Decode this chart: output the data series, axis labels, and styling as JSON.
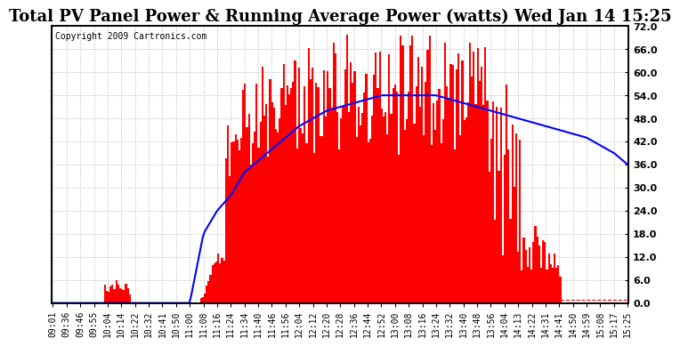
{
  "title": "Total PV Panel Power & Running Average Power (watts) Wed Jan 14 15:25",
  "copyright": "Copyright 2009 Cartronics.com",
  "ylabel_right_ticks": [
    0.0,
    6.0,
    12.0,
    18.0,
    24.0,
    30.0,
    36.0,
    42.0,
    48.0,
    54.0,
    60.0,
    66.0,
    72.0
  ],
  "ymin": 0.0,
  "ymax": 72.0,
  "x_tick_labels": [
    "09:01",
    "09:36",
    "09:46",
    "09:55",
    "10:04",
    "10:14",
    "10:22",
    "10:32",
    "10:41",
    "10:50",
    "11:00",
    "11:08",
    "11:16",
    "11:24",
    "11:34",
    "11:40",
    "11:46",
    "11:56",
    "12:04",
    "12:12",
    "12:20",
    "12:28",
    "12:36",
    "12:44",
    "12:52",
    "13:00",
    "13:08",
    "13:16",
    "13:24",
    "13:32",
    "13:40",
    "13:48",
    "13:56",
    "14:04",
    "14:13",
    "14:22",
    "14:31",
    "14:41",
    "14:50",
    "14:59",
    "15:08",
    "15:17",
    "15:25"
  ],
  "n_ticks": 43,
  "bar_color": "#FF0000",
  "line_color": "#0000FF",
  "dash_color": "#FF0000",
  "bg_color": "#FFFFFF",
  "grid_color": "#C8C8C8",
  "title_fontsize": 13,
  "copyright_fontsize": 7,
  "tick_fontsize": 7,
  "n_bars": 300
}
